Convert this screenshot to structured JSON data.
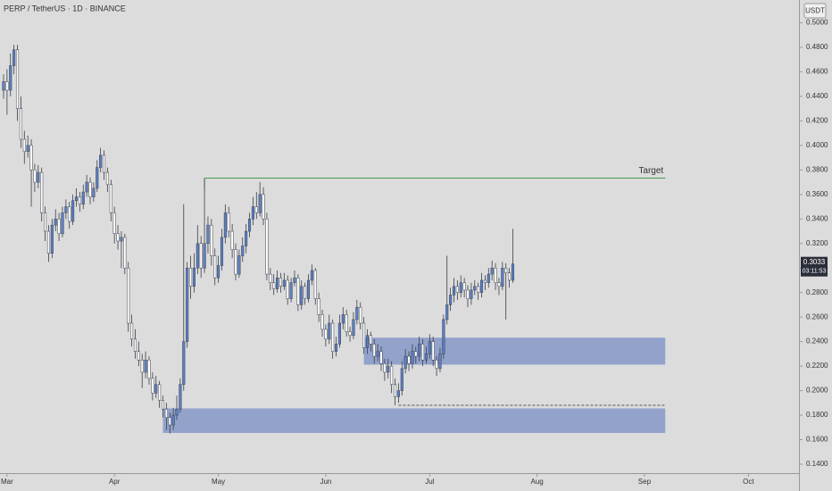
{
  "chart_data": {
    "type": "candlestick",
    "title": "PERP / TetherUS · 1D · BINANCE",
    "currency": "USDT",
    "ohlc": [
      [
        0.445,
        0.458,
        0.438,
        0.452
      ],
      [
        0.452,
        0.462,
        0.425,
        0.445
      ],
      [
        0.445,
        0.475,
        0.44,
        0.465
      ],
      [
        0.465,
        0.482,
        0.458,
        0.478
      ],
      [
        0.478,
        0.482,
        0.42,
        0.43
      ],
      [
        0.43,
        0.44,
        0.398,
        0.405
      ],
      [
        0.405,
        0.412,
        0.385,
        0.395
      ],
      [
        0.395,
        0.408,
        0.39,
        0.4
      ],
      [
        0.4,
        0.405,
        0.35,
        0.38
      ],
      [
        0.38,
        0.385,
        0.362,
        0.37
      ],
      [
        0.37,
        0.384,
        0.365,
        0.378
      ],
      [
        0.378,
        0.382,
        0.338,
        0.345
      ],
      [
        0.345,
        0.35,
        0.322,
        0.33
      ],
      [
        0.33,
        0.335,
        0.305,
        0.312
      ],
      [
        0.312,
        0.34,
        0.308,
        0.335
      ],
      [
        0.335,
        0.348,
        0.33,
        0.34
      ],
      [
        0.34,
        0.345,
        0.322,
        0.328
      ],
      [
        0.328,
        0.35,
        0.325,
        0.345
      ],
      [
        0.345,
        0.356,
        0.34,
        0.35
      ],
      [
        0.35,
        0.354,
        0.332,
        0.338
      ],
      [
        0.338,
        0.36,
        0.335,
        0.355
      ],
      [
        0.355,
        0.365,
        0.35,
        0.358
      ],
      [
        0.358,
        0.362,
        0.346,
        0.352
      ],
      [
        0.352,
        0.368,
        0.348,
        0.362
      ],
      [
        0.362,
        0.376,
        0.358,
        0.37
      ],
      [
        0.37,
        0.374,
        0.352,
        0.358
      ],
      [
        0.358,
        0.37,
        0.354,
        0.365
      ],
      [
        0.365,
        0.388,
        0.362,
        0.382
      ],
      [
        0.382,
        0.398,
        0.378,
        0.392
      ],
      [
        0.392,
        0.396,
        0.372,
        0.378
      ],
      [
        0.378,
        0.382,
        0.362,
        0.368
      ],
      [
        0.368,
        0.372,
        0.338,
        0.345
      ],
      [
        0.345,
        0.35,
        0.32,
        0.328
      ],
      [
        0.328,
        0.335,
        0.315,
        0.322
      ],
      [
        0.322,
        0.33,
        0.3,
        0.325
      ],
      [
        0.325,
        0.328,
        0.295,
        0.3
      ],
      [
        0.3,
        0.305,
        0.248,
        0.255
      ],
      [
        0.255,
        0.262,
        0.236,
        0.242
      ],
      [
        0.242,
        0.25,
        0.226,
        0.232
      ],
      [
        0.232,
        0.24,
        0.22,
        0.225
      ],
      [
        0.225,
        0.23,
        0.202,
        0.215
      ],
      [
        0.215,
        0.232,
        0.21,
        0.225
      ],
      [
        0.225,
        0.228,
        0.205,
        0.21
      ],
      [
        0.21,
        0.215,
        0.192,
        0.198
      ],
      [
        0.198,
        0.212,
        0.194,
        0.205
      ],
      [
        0.205,
        0.208,
        0.186,
        0.192
      ],
      [
        0.192,
        0.196,
        0.178,
        0.185
      ],
      [
        0.185,
        0.19,
        0.168,
        0.178
      ],
      [
        0.178,
        0.182,
        0.165,
        0.172
      ],
      [
        0.172,
        0.186,
        0.168,
        0.18
      ],
      [
        0.18,
        0.196,
        0.176,
        0.185
      ],
      [
        0.185,
        0.21,
        0.182,
        0.205
      ],
      [
        0.205,
        0.352,
        0.2,
        0.24
      ],
      [
        0.24,
        0.305,
        0.235,
        0.3
      ],
      [
        0.3,
        0.31,
        0.275,
        0.285
      ],
      [
        0.285,
        0.312,
        0.28,
        0.3
      ],
      [
        0.3,
        0.335,
        0.295,
        0.32
      ],
      [
        0.32,
        0.326,
        0.292,
        0.3
      ],
      [
        0.3,
        0.373,
        0.296,
        0.32
      ],
      [
        0.32,
        0.342,
        0.312,
        0.335
      ],
      [
        0.335,
        0.34,
        0.302,
        0.31
      ],
      [
        0.31,
        0.316,
        0.286,
        0.292
      ],
      [
        0.292,
        0.31,
        0.288,
        0.302
      ],
      [
        0.302,
        0.332,
        0.298,
        0.325
      ],
      [
        0.325,
        0.352,
        0.32,
        0.345
      ],
      [
        0.345,
        0.35,
        0.325,
        0.33
      ],
      [
        0.33,
        0.336,
        0.308,
        0.315
      ],
      [
        0.315,
        0.32,
        0.29,
        0.295
      ],
      [
        0.295,
        0.315,
        0.292,
        0.31
      ],
      [
        0.31,
        0.325,
        0.305,
        0.318
      ],
      [
        0.318,
        0.336,
        0.312,
        0.33
      ],
      [
        0.33,
        0.345,
        0.325,
        0.34
      ],
      [
        0.34,
        0.358,
        0.335,
        0.35
      ],
      [
        0.35,
        0.362,
        0.34,
        0.345
      ],
      [
        0.345,
        0.37,
        0.342,
        0.36
      ],
      [
        0.36,
        0.366,
        0.335,
        0.34
      ],
      [
        0.34,
        0.345,
        0.29,
        0.295
      ],
      [
        0.295,
        0.3,
        0.282,
        0.288
      ],
      [
        0.288,
        0.295,
        0.278,
        0.283
      ],
      [
        0.283,
        0.298,
        0.28,
        0.292
      ],
      [
        0.292,
        0.296,
        0.28,
        0.285
      ],
      [
        0.285,
        0.296,
        0.282,
        0.29
      ],
      [
        0.29,
        0.294,
        0.27,
        0.275
      ],
      [
        0.275,
        0.292,
        0.272,
        0.288
      ],
      [
        0.288,
        0.298,
        0.285,
        0.292
      ],
      [
        0.292,
        0.295,
        0.265,
        0.27
      ],
      [
        0.27,
        0.29,
        0.266,
        0.285
      ],
      [
        0.285,
        0.288,
        0.27,
        0.275
      ],
      [
        0.275,
        0.295,
        0.272,
        0.29
      ],
      [
        0.29,
        0.303,
        0.286,
        0.298
      ],
      [
        0.298,
        0.3,
        0.27,
        0.275
      ],
      [
        0.275,
        0.28,
        0.256,
        0.262
      ],
      [
        0.262,
        0.266,
        0.244,
        0.25
      ],
      [
        0.25,
        0.254,
        0.236,
        0.242
      ],
      [
        0.242,
        0.262,
        0.238,
        0.255
      ],
      [
        0.255,
        0.258,
        0.226,
        0.232
      ],
      [
        0.232,
        0.244,
        0.228,
        0.238
      ],
      [
        0.238,
        0.262,
        0.235,
        0.255
      ],
      [
        0.255,
        0.268,
        0.25,
        0.262
      ],
      [
        0.262,
        0.266,
        0.244,
        0.248
      ],
      [
        0.248,
        0.252,
        0.24,
        0.245
      ],
      [
        0.245,
        0.264,
        0.242,
        0.258
      ],
      [
        0.258,
        0.274,
        0.254,
        0.268
      ],
      [
        0.268,
        0.272,
        0.25,
        0.255
      ],
      [
        0.255,
        0.26,
        0.23,
        0.235
      ],
      [
        0.235,
        0.25,
        0.23,
        0.245
      ],
      [
        0.245,
        0.248,
        0.232,
        0.238
      ],
      [
        0.238,
        0.242,
        0.222,
        0.228
      ],
      [
        0.228,
        0.238,
        0.224,
        0.232
      ],
      [
        0.232,
        0.236,
        0.216,
        0.222
      ],
      [
        0.222,
        0.226,
        0.208,
        0.215
      ],
      [
        0.215,
        0.226,
        0.21,
        0.22
      ],
      [
        0.22,
        0.224,
        0.198,
        0.205
      ],
      [
        0.205,
        0.21,
        0.188,
        0.195
      ],
      [
        0.195,
        0.206,
        0.19,
        0.2
      ],
      [
        0.2,
        0.224,
        0.196,
        0.218
      ],
      [
        0.218,
        0.234,
        0.214,
        0.228
      ],
      [
        0.228,
        0.232,
        0.216,
        0.222
      ],
      [
        0.222,
        0.238,
        0.218,
        0.232
      ],
      [
        0.232,
        0.236,
        0.222,
        0.228
      ],
      [
        0.228,
        0.244,
        0.224,
        0.238
      ],
      [
        0.238,
        0.242,
        0.22,
        0.225
      ],
      [
        0.225,
        0.236,
        0.222,
        0.23
      ],
      [
        0.23,
        0.246,
        0.226,
        0.24
      ],
      [
        0.24,
        0.244,
        0.22,
        0.225
      ],
      [
        0.225,
        0.228,
        0.212,
        0.218
      ],
      [
        0.218,
        0.235,
        0.215,
        0.23
      ],
      [
        0.23,
        0.262,
        0.226,
        0.258
      ],
      [
        0.258,
        0.31,
        0.254,
        0.27
      ],
      [
        0.27,
        0.284,
        0.265,
        0.278
      ],
      [
        0.278,
        0.292,
        0.272,
        0.285
      ],
      [
        0.285,
        0.29,
        0.274,
        0.28
      ],
      [
        0.28,
        0.294,
        0.276,
        0.288
      ],
      [
        0.288,
        0.292,
        0.276,
        0.282
      ],
      [
        0.282,
        0.286,
        0.268,
        0.275
      ],
      [
        0.275,
        0.288,
        0.27,
        0.282
      ],
      [
        0.282,
        0.29,
        0.278,
        0.285
      ],
      [
        0.285,
        0.288,
        0.274,
        0.28
      ],
      [
        0.28,
        0.296,
        0.276,
        0.29
      ],
      [
        0.29,
        0.294,
        0.282,
        0.288
      ],
      [
        0.288,
        0.3,
        0.284,
        0.295
      ],
      [
        0.295,
        0.306,
        0.29,
        0.3
      ],
      [
        0.3,
        0.304,
        0.282,
        0.288
      ],
      [
        0.288,
        0.292,
        0.278,
        0.285
      ],
      [
        0.285,
        0.305,
        0.282,
        0.3
      ],
      [
        0.3,
        0.304,
        0.258,
        0.296
      ],
      [
        0.296,
        0.3,
        0.284,
        0.29
      ],
      [
        0.29,
        0.332,
        0.288,
        0.3033
      ]
    ],
    "up_color": "#5b7fc7",
    "down_color": "#ffffff",
    "wick_color": "#3a3f4a",
    "xlim": [
      -1.03,
      229.6
    ],
    "xticks": [
      {
        "value": 1,
        "label": "Mar"
      },
      {
        "value": 32,
        "label": "Apr"
      },
      {
        "value": 62,
        "label": "May"
      },
      {
        "value": 93,
        "label": "Jun"
      },
      {
        "value": 123,
        "label": "Jul"
      },
      {
        "value": 154,
        "label": "Aug"
      },
      {
        "value": 185,
        "label": "Sep"
      },
      {
        "value": 215,
        "label": "Oct"
      }
    ],
    "ylim": [
      0.1327,
      0.5186
    ],
    "yticks": [
      {
        "value": 0.14,
        "label": "0.1400"
      },
      {
        "value": 0.16,
        "label": "0.1600"
      },
      {
        "value": 0.18,
        "label": "0.1800"
      },
      {
        "value": 0.2,
        "label": "0.2000"
      },
      {
        "value": 0.22,
        "label": "0.2200"
      },
      {
        "value": 0.24,
        "label": "0.2400"
      },
      {
        "value": 0.26,
        "label": "0.2600"
      },
      {
        "value": 0.28,
        "label": "0.2800"
      },
      {
        "value": 0.3,
        "label": "0.3000"
      },
      {
        "value": 0.32,
        "label": "0.3200"
      },
      {
        "value": 0.34,
        "label": "0.3400"
      },
      {
        "value": 0.36,
        "label": "0.3600"
      },
      {
        "value": 0.38,
        "label": "0.3800"
      },
      {
        "value": 0.4,
        "label": "0.4000"
      },
      {
        "value": 0.42,
        "label": "0.4200"
      },
      {
        "value": 0.44,
        "label": "0.4400"
      },
      {
        "value": 0.46,
        "label": "0.4600"
      },
      {
        "value": 0.48,
        "label": "0.4800"
      },
      {
        "value": 0.5,
        "label": "0.5000"
      }
    ],
    "last_price": 0.3033,
    "countdown": "03:11:53",
    "target": {
      "label": "Target",
      "value": 0.3733,
      "start": 58,
      "end": 191,
      "color": "#4a9a4a"
    },
    "zones": [
      {
        "low": 0.1655,
        "high": 0.1855,
        "start": 46,
        "end": 191
      },
      {
        "low": 0.2212,
        "high": 0.2432,
        "start": 104,
        "end": 191
      }
    ],
    "zone_color": "#7f93c7",
    "level": {
      "value": 0.188,
      "start": 114,
      "end": 191
    }
  }
}
